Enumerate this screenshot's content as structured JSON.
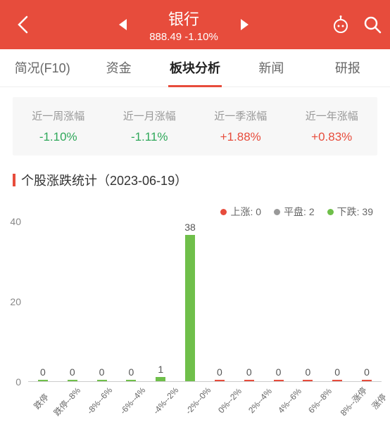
{
  "header": {
    "title": "银行",
    "price": "888.49",
    "change": "-1.10%",
    "bg_color": "#e74c3c"
  },
  "tabs": [
    {
      "label": "简况(F10)",
      "active": false
    },
    {
      "label": "资金",
      "active": false
    },
    {
      "label": "板块分析",
      "active": true
    },
    {
      "label": "新闻",
      "active": false
    },
    {
      "label": "研报",
      "active": false
    }
  ],
  "stats": [
    {
      "label": "近一周涨幅",
      "value": "-1.10%",
      "direction": "down"
    },
    {
      "label": "近一月涨幅",
      "value": "-1.11%",
      "direction": "down"
    },
    {
      "label": "近一季涨幅",
      "value": "+1.88%",
      "direction": "up"
    },
    {
      "label": "近一年涨幅",
      "value": "+0.83%",
      "direction": "up"
    }
  ],
  "section": {
    "title": "个股涨跌统计（2023-06-19）"
  },
  "legend": [
    {
      "label": "上涨: 0",
      "color": "#e74c3c"
    },
    {
      "label": "平盘: 2",
      "color": "#999999"
    },
    {
      "label": "下跌: 39",
      "color": "#6fbf4a"
    }
  ],
  "chart": {
    "type": "bar",
    "ylim": [
      0,
      40
    ],
    "yticks": [
      0,
      20,
      40
    ],
    "categories": [
      "跌停",
      "跌停--8%",
      "-8%--6%",
      "-6%--4%",
      "-4%--2%",
      "-2%--0%",
      "0%--2%",
      "2%--4%",
      "4%--6%",
      "6%--8%",
      "8%--涨停",
      "涨停"
    ],
    "values": [
      0,
      0,
      0,
      0,
      1,
      38,
      0,
      0,
      0,
      0,
      0,
      0
    ],
    "bar_colors": [
      "#6fbf4a",
      "#6fbf4a",
      "#6fbf4a",
      "#6fbf4a",
      "#6fbf4a",
      "#6fbf4a",
      "#e74c3c",
      "#e74c3c",
      "#e74c3c",
      "#e74c3c",
      "#e74c3c",
      "#e74c3c"
    ],
    "value_label_color": "#555555",
    "axis_color": "#cccccc"
  }
}
